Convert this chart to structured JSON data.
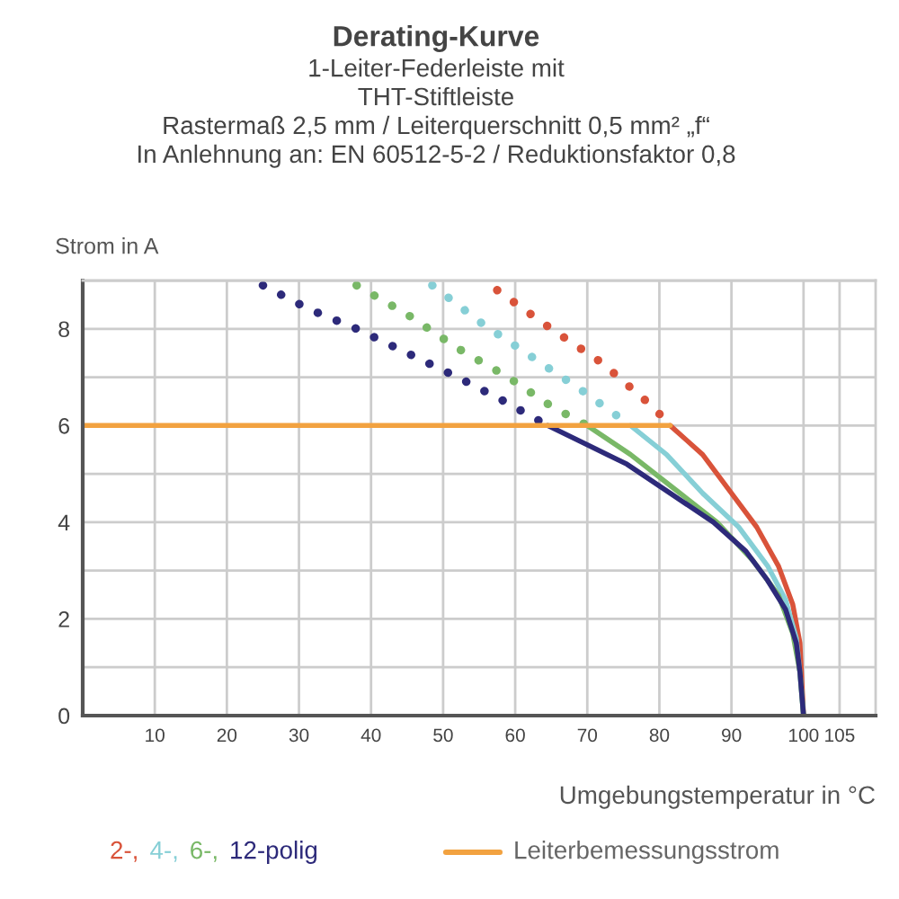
{
  "chart_data": {
    "type": "line",
    "title": "Derating-Kurve",
    "subtitle": "1-Leiter-Federleiste mit\nTHT-Stiftleiste\nRastermaß 2,5 mm / Leiterquerschnitt 0,5 mm² „f“\nIn Anlehnung an: EN 60512-5-2 / Reduktionsfaktor 0,8",
    "xlabel": "Umgebungstemperatur in °C",
    "ylabel": "Strom in A",
    "xlim": [
      0,
      110
    ],
    "xticks": [
      10,
      20,
      30,
      40,
      50,
      60,
      70,
      80,
      90,
      100,
      105
    ],
    "ylim": [
      0,
      9
    ],
    "yticks": [
      0,
      {
        "value": 1,
        "label": null
      },
      2,
      {
        "value": 3,
        "label": null
      },
      4,
      {
        "value": 5,
        "label": null
      },
      6,
      {
        "value": 7,
        "label": null
      },
      8,
      {
        "value": 9,
        "label": null
      }
    ],
    "grid": true,
    "legend": "bottom",
    "series": [
      {
        "name": "2-,",
        "color": "#d9533a",
        "x": [
          81.5,
          86,
          90,
          93.5,
          96.5,
          98.5,
          99.5,
          100
        ],
        "values": [
          6.0,
          5.4,
          4.6,
          3.9,
          3.1,
          2.3,
          1.5,
          0
        ]
      },
      {
        "color": "#d9533a",
        "line_style": "dotted",
        "x": [
          57.5,
          65,
          72,
          79,
          81.5
        ],
        "values": [
          8.8,
          8.0,
          7.3,
          6.4,
          6.0
        ]
      },
      {
        "name": "4-,",
        "color": "#86cfd6",
        "x": [
          76,
          81,
          86,
          91,
          95,
          97.5,
          99,
          99.5,
          100
        ],
        "values": [
          6.0,
          5.4,
          4.6,
          3.9,
          3.1,
          2.4,
          1.6,
          0.9,
          0
        ]
      },
      {
        "color": "#86cfd6",
        "line_style": "dotted",
        "x": [
          48.5,
          55.5,
          62.5,
          69.5,
          76
        ],
        "values": [
          8.9,
          8.1,
          7.4,
          6.7,
          6.0
        ]
      },
      {
        "name": "6-,",
        "color": "#79b867",
        "x": [
          70,
          76,
          82,
          88,
          93,
          96.5,
          98.5,
          99.5,
          100
        ],
        "values": [
          6.0,
          5.4,
          4.7,
          4.0,
          3.2,
          2.5,
          1.7,
          0.9,
          0
        ]
      },
      {
        "color": "#79b867",
        "line_style": "dotted",
        "x": [
          38,
          45,
          52,
          59,
          65,
          70
        ],
        "values": [
          8.9,
          8.3,
          7.6,
          7.0,
          6.4,
          6.0
        ]
      },
      {
        "name": "12-polig",
        "color": "#2d2a7a",
        "x": [
          64.5,
          70,
          75.5,
          81.5,
          87.5,
          92,
          95,
          97.5,
          99,
          99.5,
          100
        ],
        "values": [
          6.0,
          5.6,
          5.2,
          4.6,
          4.0,
          3.4,
          2.8,
          2.2,
          1.5,
          0.9,
          0
        ]
      },
      {
        "color": "#2d2a7a",
        "line_style": "dotted",
        "x": [
          25,
          31.5,
          38,
          45,
          52,
          58.5,
          64.5
        ],
        "values": [
          8.9,
          8.4,
          8.0,
          7.5,
          7.0,
          6.5,
          6.0
        ]
      },
      {
        "name": "Leiterbemessungsstrom",
        "color": "#f2a240",
        "x": [
          0,
          81.5
        ],
        "values": [
          6,
          6
        ]
      }
    ]
  }
}
